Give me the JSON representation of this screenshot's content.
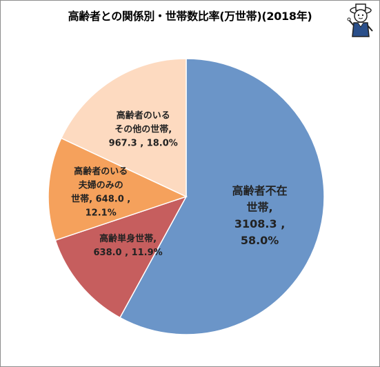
{
  "chart_data": {
    "type": "pie",
    "title": "高齢者との関係別・世帯数比率(万世帯)(2018年)",
    "unit": "万世帯",
    "categories": [
      "高齢者不在世帯",
      "高齢単身世帯",
      "高齢者のいる夫婦のみの世帯",
      "高齢者のいるその他の世帯"
    ],
    "values": [
      3108.3,
      638.0,
      648.0,
      967.3
    ],
    "percents": [
      58.0,
      11.9,
      12.1,
      18.0
    ],
    "colors": [
      "#6b95c8",
      "#c65e5e",
      "#f5a15c",
      "#fddac0"
    ],
    "start_angle_deg": 0,
    "direction": "clockwise",
    "legend": "none",
    "labels": [
      {
        "lines": [
          "高齢者不在",
          "世帯,",
          "3108.3 ,",
          "58.0%"
        ]
      },
      {
        "lines": [
          "高齢単身世帯,",
          "638.0 , 11.9%"
        ]
      },
      {
        "lines": [
          "高齢者のいる",
          "夫婦のみの",
          "世帯, 648.0 ,",
          "12.1%"
        ]
      },
      {
        "lines": [
          "高齢者のいる",
          "その他の世帯,",
          "967.3 , 18.0%"
        ]
      }
    ]
  },
  "mascot": {
    "icon": "cat-mascot-icon"
  }
}
